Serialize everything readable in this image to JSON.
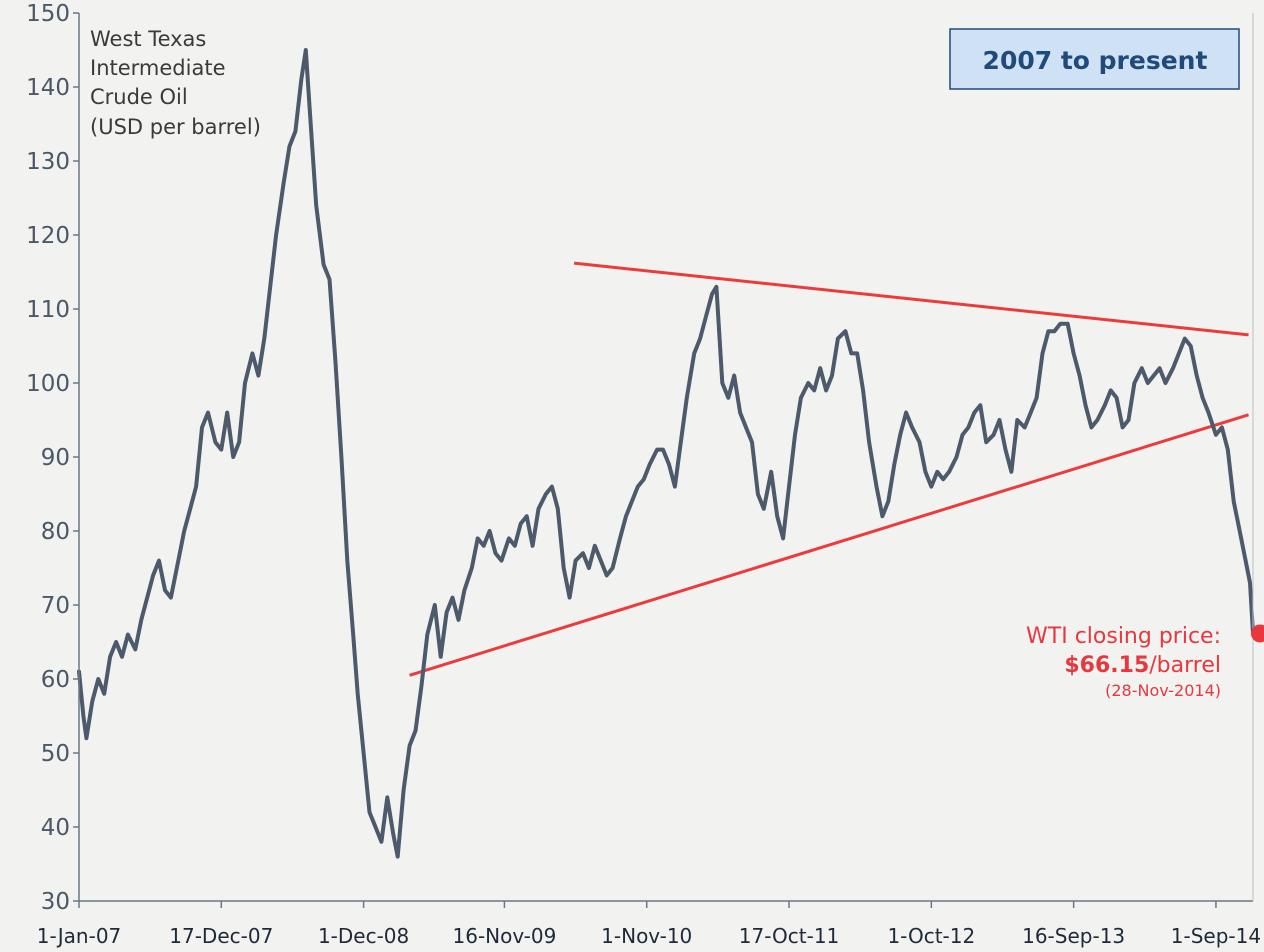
{
  "chart_data": {
    "type": "line",
    "title_lines": [
      "West Texas",
      "Intermediate",
      "Crude Oil",
      "(USD per barrel)"
    ],
    "badge": "2007 to present",
    "ylim": [
      30,
      150
    ],
    "y_ticks": [
      30,
      40,
      50,
      60,
      70,
      80,
      90,
      100,
      110,
      120,
      130,
      140,
      150
    ],
    "x_ticks": [
      {
        "label": "1-Jan-07",
        "year": 2007.0
      },
      {
        "label": "17-Dec-07",
        "year": 2007.96
      },
      {
        "label": "1-Dec-08",
        "year": 2008.92
      },
      {
        "label": "16-Nov-09",
        "year": 2009.87
      },
      {
        "label": "1-Nov-10",
        "year": 2010.83
      },
      {
        "label": "17-Oct-11",
        "year": 2011.79
      },
      {
        "label": "1-Oct-12",
        "year": 2012.75
      },
      {
        "label": "16-Sep-13",
        "year": 2013.71
      },
      {
        "label": "1-Sep-14",
        "year": 2014.67
      }
    ],
    "xlim": [
      2007.0,
      2014.92
    ],
    "series": [
      {
        "name": "WTI Crude Oil (USD per barrel)",
        "color": "#4c5a6b",
        "points": [
          [
            2007.0,
            61
          ],
          [
            2007.03,
            55
          ],
          [
            2007.05,
            52
          ],
          [
            2007.09,
            57
          ],
          [
            2007.13,
            60
          ],
          [
            2007.17,
            58
          ],
          [
            2007.21,
            63
          ],
          [
            2007.25,
            65
          ],
          [
            2007.29,
            63
          ],
          [
            2007.33,
            66
          ],
          [
            2007.38,
            64
          ],
          [
            2007.42,
            68
          ],
          [
            2007.46,
            71
          ],
          [
            2007.5,
            74
          ],
          [
            2007.54,
            76
          ],
          [
            2007.58,
            72
          ],
          [
            2007.62,
            71
          ],
          [
            2007.67,
            76
          ],
          [
            2007.71,
            80
          ],
          [
            2007.75,
            83
          ],
          [
            2007.79,
            86
          ],
          [
            2007.83,
            94
          ],
          [
            2007.87,
            96
          ],
          [
            2007.92,
            92
          ],
          [
            2007.96,
            91
          ],
          [
            2008.0,
            96
          ],
          [
            2008.04,
            90
          ],
          [
            2008.08,
            92
          ],
          [
            2008.12,
            100
          ],
          [
            2008.17,
            104
          ],
          [
            2008.21,
            101
          ],
          [
            2008.25,
            106
          ],
          [
            2008.29,
            113
          ],
          [
            2008.33,
            120
          ],
          [
            2008.38,
            127
          ],
          [
            2008.42,
            132
          ],
          [
            2008.46,
            134
          ],
          [
            2008.5,
            141
          ],
          [
            2008.53,
            145
          ],
          [
            2008.56,
            136
          ],
          [
            2008.6,
            124
          ],
          [
            2008.65,
            116
          ],
          [
            2008.69,
            114
          ],
          [
            2008.73,
            103
          ],
          [
            2008.77,
            90
          ],
          [
            2008.81,
            76
          ],
          [
            2008.85,
            66
          ],
          [
            2008.88,
            58
          ],
          [
            2008.92,
            50
          ],
          [
            2008.96,
            42
          ],
          [
            2009.0,
            40
          ],
          [
            2009.04,
            38
          ],
          [
            2009.08,
            44
          ],
          [
            2009.12,
            39
          ],
          [
            2009.15,
            36
          ],
          [
            2009.19,
            45
          ],
          [
            2009.23,
            51
          ],
          [
            2009.27,
            53
          ],
          [
            2009.31,
            59
          ],
          [
            2009.35,
            66
          ],
          [
            2009.4,
            70
          ],
          [
            2009.44,
            63
          ],
          [
            2009.48,
            69
          ],
          [
            2009.52,
            71
          ],
          [
            2009.56,
            68
          ],
          [
            2009.6,
            72
          ],
          [
            2009.65,
            75
          ],
          [
            2009.69,
            79
          ],
          [
            2009.73,
            78
          ],
          [
            2009.77,
            80
          ],
          [
            2009.81,
            77
          ],
          [
            2009.85,
            76
          ],
          [
            2009.9,
            79
          ],
          [
            2009.94,
            78
          ],
          [
            2009.98,
            81
          ],
          [
            2010.02,
            82
          ],
          [
            2010.06,
            78
          ],
          [
            2010.1,
            83
          ],
          [
            2010.15,
            85
          ],
          [
            2010.19,
            86
          ],
          [
            2010.23,
            83
          ],
          [
            2010.27,
            75
          ],
          [
            2010.31,
            71
          ],
          [
            2010.35,
            76
          ],
          [
            2010.4,
            77
          ],
          [
            2010.44,
            75
          ],
          [
            2010.48,
            78
          ],
          [
            2010.52,
            76
          ],
          [
            2010.56,
            74
          ],
          [
            2010.6,
            75
          ],
          [
            2010.65,
            79
          ],
          [
            2010.69,
            82
          ],
          [
            2010.73,
            84
          ],
          [
            2010.77,
            86
          ],
          [
            2010.81,
            87
          ],
          [
            2010.85,
            89
          ],
          [
            2010.9,
            91
          ],
          [
            2010.94,
            91
          ],
          [
            2010.98,
            89
          ],
          [
            2011.02,
            86
          ],
          [
            2011.06,
            92
          ],
          [
            2011.1,
            98
          ],
          [
            2011.15,
            104
          ],
          [
            2011.19,
            106
          ],
          [
            2011.23,
            109
          ],
          [
            2011.27,
            112
          ],
          [
            2011.3,
            113
          ],
          [
            2011.34,
            100
          ],
          [
            2011.38,
            98
          ],
          [
            2011.42,
            101
          ],
          [
            2011.46,
            96
          ],
          [
            2011.5,
            94
          ],
          [
            2011.54,
            92
          ],
          [
            2011.58,
            85
          ],
          [
            2011.62,
            83
          ],
          [
            2011.67,
            88
          ],
          [
            2011.71,
            82
          ],
          [
            2011.75,
            79
          ],
          [
            2011.79,
            86
          ],
          [
            2011.83,
            93
          ],
          [
            2011.87,
            98
          ],
          [
            2011.92,
            100
          ],
          [
            2011.96,
            99
          ],
          [
            2012.0,
            102
          ],
          [
            2012.04,
            99
          ],
          [
            2012.08,
            101
          ],
          [
            2012.12,
            106
          ],
          [
            2012.17,
            107
          ],
          [
            2012.21,
            104
          ],
          [
            2012.25,
            104
          ],
          [
            2012.29,
            99
          ],
          [
            2012.33,
            92
          ],
          [
            2012.38,
            86
          ],
          [
            2012.42,
            82
          ],
          [
            2012.46,
            84
          ],
          [
            2012.5,
            89
          ],
          [
            2012.54,
            93
          ],
          [
            2012.58,
            96
          ],
          [
            2012.62,
            94
          ],
          [
            2012.67,
            92
          ],
          [
            2012.71,
            88
          ],
          [
            2012.75,
            86
          ],
          [
            2012.79,
            88
          ],
          [
            2012.83,
            87
          ],
          [
            2012.87,
            88
          ],
          [
            2012.92,
            90
          ],
          [
            2012.96,
            93
          ],
          [
            2013.0,
            94
          ],
          [
            2013.04,
            96
          ],
          [
            2013.08,
            97
          ],
          [
            2013.12,
            92
          ],
          [
            2013.17,
            93
          ],
          [
            2013.21,
            95
          ],
          [
            2013.25,
            91
          ],
          [
            2013.29,
            88
          ],
          [
            2013.33,
            95
          ],
          [
            2013.38,
            94
          ],
          [
            2013.42,
            96
          ],
          [
            2013.46,
            98
          ],
          [
            2013.5,
            104
          ],
          [
            2013.54,
            107
          ],
          [
            2013.58,
            107
          ],
          [
            2013.62,
            108
          ],
          [
            2013.67,
            108
          ],
          [
            2013.71,
            104
          ],
          [
            2013.75,
            101
          ],
          [
            2013.79,
            97
          ],
          [
            2013.83,
            94
          ],
          [
            2013.87,
            95
          ],
          [
            2013.92,
            97
          ],
          [
            2013.96,
            99
          ],
          [
            2014.0,
            98
          ],
          [
            2014.04,
            94
          ],
          [
            2014.08,
            95
          ],
          [
            2014.12,
            100
          ],
          [
            2014.17,
            102
          ],
          [
            2014.21,
            100
          ],
          [
            2014.25,
            101
          ],
          [
            2014.29,
            102
          ],
          [
            2014.33,
            100
          ],
          [
            2014.38,
            102
          ],
          [
            2014.42,
            104
          ],
          [
            2014.46,
            106
          ],
          [
            2014.5,
            105
          ],
          [
            2014.54,
            101
          ],
          [
            2014.58,
            98
          ],
          [
            2014.62,
            96
          ],
          [
            2014.67,
            93
          ],
          [
            2014.71,
            94
          ],
          [
            2014.75,
            91
          ],
          [
            2014.79,
            84
          ],
          [
            2014.83,
            80
          ],
          [
            2014.87,
            76
          ],
          [
            2014.9,
            73
          ],
          [
            2014.92,
            66.15
          ]
        ]
      }
    ],
    "trendlines": [
      {
        "name": "upper-resistance",
        "color": "#ec3b3b",
        "from": [
          2010.34,
          116.2
        ],
        "to": [
          2014.89,
          106.5
        ]
      },
      {
        "name": "lower-support",
        "color": "#ec3b3b",
        "from": [
          2009.23,
          60.5
        ],
        "to": [
          2014.89,
          95.7
        ]
      }
    ],
    "closing": {
      "line1": "WTI closing price:",
      "price": "$66.15",
      "unit": "/barrel",
      "date": "(28-Nov-2014)",
      "value": 66.15,
      "year": 2014.92,
      "color": "#e8383d"
    }
  }
}
